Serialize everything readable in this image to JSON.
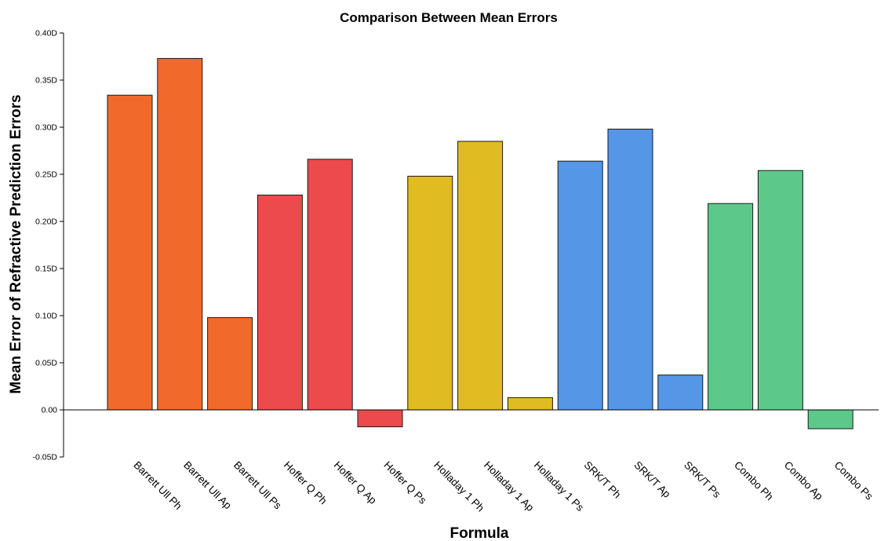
{
  "chart_data": {
    "type": "bar",
    "title": "Comparison Between Mean Errors",
    "xlabel": "Formula",
    "ylabel": "Mean Error of Refractive Prediction Errors",
    "ylim": [
      -0.05,
      0.4
    ],
    "yticks": [
      -0.05,
      0.0,
      0.05,
      0.1,
      0.15,
      0.2,
      0.25,
      0.3,
      0.35,
      0.4
    ],
    "ytick_labels": [
      "-0.05D",
      "0.00",
      "0.05D",
      "0.10D",
      "0.15D",
      "0.20D",
      "0.25D",
      "0.30D",
      "0.35D",
      "0.40D"
    ],
    "grid": false,
    "legend": "none",
    "categories": [
      "Barrett Ull Ph",
      "Barrett Ull Ap",
      "Barrett Ull Ps",
      "Hoffer Q Ph",
      "Hoffer Q Ap",
      "Hoffer Q Ps",
      "Holladay 1 Ph",
      "Holladay 1 Ap",
      "Holladay 1 Ps",
      "SRK/T Ph",
      "SRK/T Ap",
      "SRK/T Ps",
      "Combo Ph",
      "Combo Ap",
      "Combo Ps"
    ],
    "values": [
      0.334,
      0.373,
      0.098,
      0.228,
      0.266,
      -0.018,
      0.248,
      0.285,
      0.013,
      0.264,
      0.298,
      0.037,
      0.219,
      0.254,
      -0.02
    ],
    "colors": [
      "#f26a2b",
      "#f26a2b",
      "#f26a2b",
      "#ec4a4c",
      "#ec4a4c",
      "#ec4a4c",
      "#e0bc22",
      "#e0bc22",
      "#e0bc22",
      "#5596e6",
      "#5596e6",
      "#5596e6",
      "#5cc98b",
      "#5cc98b",
      "#5cc98b"
    ]
  }
}
